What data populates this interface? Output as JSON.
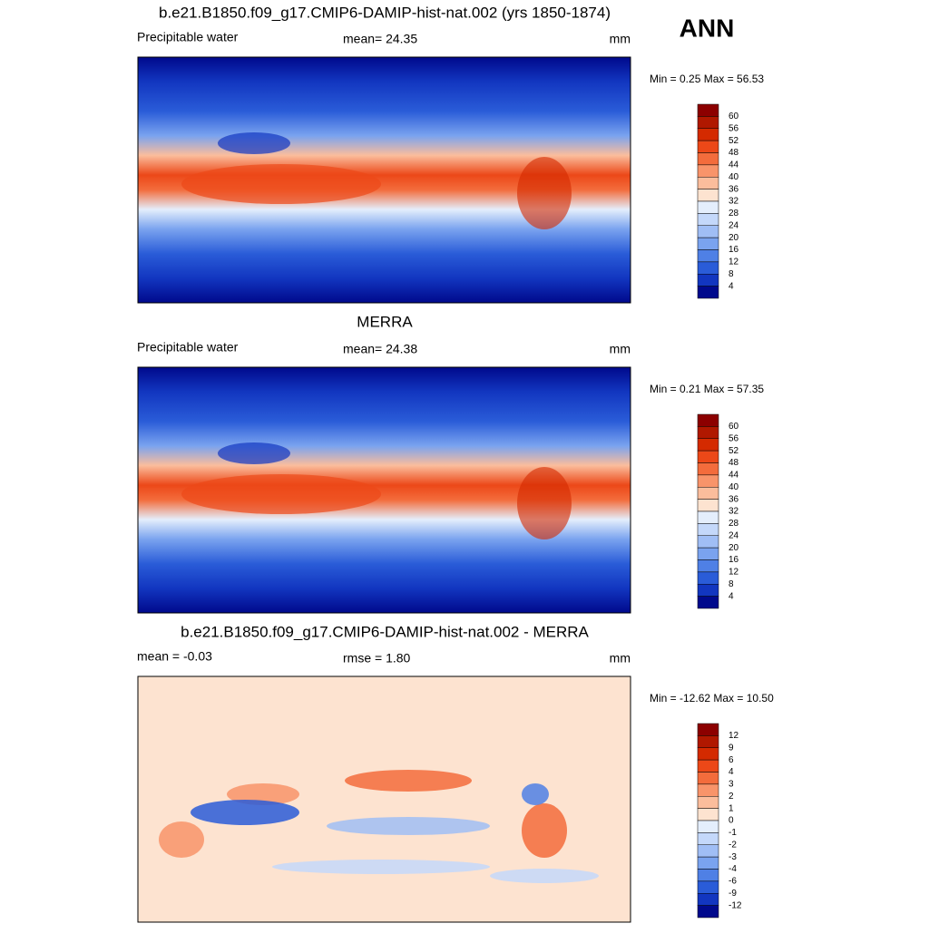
{
  "header": {
    "season": "ANN"
  },
  "panels": [
    {
      "title": "b.e21.B1850.f09_g17.CMIP6-DAMIP-hist-nat.002 (yrs 1850-1874)",
      "left": "Precipitable water",
      "center": "mean=  24.35",
      "right": "mm",
      "minmax": "Min =   0.25 Max =  56.53",
      "colorbar": {
        "labels": [
          "60",
          "56",
          "52",
          "48",
          "44",
          "40",
          "36",
          "32",
          "28",
          "24",
          "20",
          "16",
          "12",
          "8",
          "4"
        ],
        "colors": [
          "#8c0000",
          "#b01800",
          "#d42a00",
          "#ec4818",
          "#f36c3c",
          "#f8946a",
          "#fbbd9c",
          "#fde3d0",
          "#e4eefc",
          "#c4d8fa",
          "#a0bef5",
          "#7aa3ef",
          "#4f80e5",
          "#2a5cd8",
          "#1236c0",
          "#00098c"
        ]
      }
    },
    {
      "title": "MERRA",
      "left": "Precipitable water",
      "center": "mean=  24.38",
      "right": "mm",
      "minmax": "Min =   0.21 Max =  57.35",
      "colorbar": {
        "labels": [
          "60",
          "56",
          "52",
          "48",
          "44",
          "40",
          "36",
          "32",
          "28",
          "24",
          "20",
          "16",
          "12",
          "8",
          "4"
        ],
        "colors": [
          "#8c0000",
          "#b01800",
          "#d42a00",
          "#ec4818",
          "#f36c3c",
          "#f8946a",
          "#fbbd9c",
          "#fde3d0",
          "#e4eefc",
          "#c4d8fa",
          "#a0bef5",
          "#7aa3ef",
          "#4f80e5",
          "#2a5cd8",
          "#1236c0",
          "#00098c"
        ]
      }
    },
    {
      "title": "b.e21.B1850.f09_g17.CMIP6-DAMIP-hist-nat.002 - MERRA",
      "left": "mean =  -0.03",
      "center": "rmse =   1.80",
      "right": "mm",
      "minmax": "Min = -12.62 Max =  10.50",
      "colorbar": {
        "labels": [
          "12",
          "9",
          "6",
          "4",
          "3",
          "2",
          "1",
          "0",
          "-1",
          "-2",
          "-3",
          "-4",
          "-6",
          "-9",
          "-12"
        ],
        "colors": [
          "#8c0000",
          "#b01800",
          "#d42a00",
          "#ec4818",
          "#f36c3c",
          "#f8946a",
          "#fbbd9c",
          "#fde3d0",
          "#e4eefc",
          "#c4d8fa",
          "#a0bef5",
          "#7aa3ef",
          "#4f80e5",
          "#2a5cd8",
          "#1236c0",
          "#00098c"
        ]
      }
    }
  ]
}
